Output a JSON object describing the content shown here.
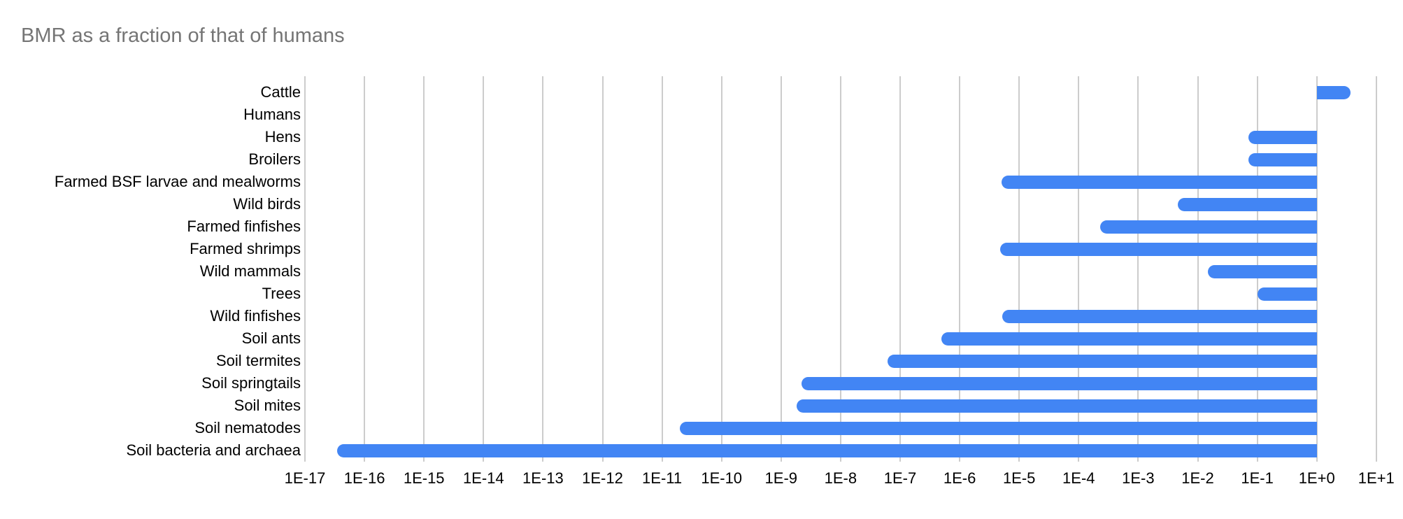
{
  "title": "BMR as a fraction of that of humans",
  "colors": {
    "bar": "#4285F4",
    "gridline": "#cccccc",
    "title_text": "#757575",
    "label_text": "#000000",
    "background": "#ffffff"
  },
  "chart_data": {
    "type": "bar",
    "orientation": "horizontal",
    "scale": "log10",
    "title": "BMR as a fraction of that of humans",
    "xlabel": "",
    "ylabel": "",
    "grid": true,
    "legend": "none",
    "baseline": 1,
    "x_range": [
      1e-17,
      10
    ],
    "x_tick_labels": [
      "1E-17",
      "1E-16",
      "1E-15",
      "1E-14",
      "1E-13",
      "1E-12",
      "1E-11",
      "1E-10",
      "1E-9",
      "1E-8",
      "1E-7",
      "1E-6",
      "1E-5",
      "1E-4",
      "1E-3",
      "1E-2",
      "1E-1",
      "1E+0",
      "1E+1"
    ],
    "x_tick_values": [
      1e-17,
      1e-16,
      1e-15,
      1e-14,
      1e-13,
      1e-12,
      1e-11,
      1e-10,
      1e-09,
      1e-08,
      1e-07,
      1e-06,
      1e-05,
      0.0001,
      0.001,
      0.01,
      0.1,
      1,
      10
    ],
    "categories": [
      "Cattle",
      "Humans",
      "Hens",
      "Broilers",
      "Farmed BSF larvae and mealworms",
      "Wild birds",
      "Farmed finfishes",
      "Farmed shrimps",
      "Wild mammals",
      "Trees",
      "Wild finfishes",
      "Soil ants",
      "Soil termites",
      "Soil springtails",
      "Soil mites",
      "Soil nematodes",
      "Soil bacteria and archaea"
    ],
    "bars": [
      {
        "category": "Cattle",
        "value": 3.7
      },
      {
        "category": "Humans",
        "value": 1
      },
      {
        "category": "Hens",
        "value": 0.072
      },
      {
        "category": "Broilers",
        "value": 0.072
      },
      {
        "category": "Farmed BSF larvae and mealworms",
        "value": 5.1e-06
      },
      {
        "category": "Wild birds",
        "value": 0.0046
      },
      {
        "category": "Farmed finfishes",
        "value": 0.00023
      },
      {
        "category": "Farmed shrimps",
        "value": 4.8e-06
      },
      {
        "category": "Wild mammals",
        "value": 0.015
      },
      {
        "category": "Trees",
        "value": 0.1
      },
      {
        "category": "Wild finfishes",
        "value": 5.2e-06
      },
      {
        "category": "Soil ants",
        "value": 5e-07
      },
      {
        "category": "Soil termites",
        "value": 6.1e-08
      },
      {
        "category": "Soil springtails",
        "value": 2.2e-09
      },
      {
        "category": "Soil mites",
        "value": 1.8e-09
      },
      {
        "category": "Soil nematodes",
        "value": 2e-11
      },
      {
        "category": "Soil bacteria and archaea",
        "value": 3.5e-17
      }
    ],
    "note_bars_span": "each bar spans from value to the human baseline of 1 on a log axis; Humans has value 1 so no bar is drawn"
  }
}
